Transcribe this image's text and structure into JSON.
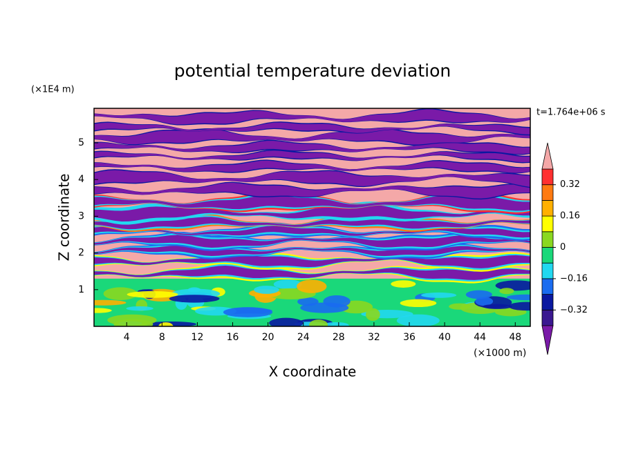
{
  "chart_data": {
    "type": "contour",
    "title": "potential temperature deviation",
    "x_label": "X coordinate",
    "y_label": "Z coordinate",
    "x_unit": "(×1000 m)",
    "y_unit": "(×1E4 m)",
    "time_label": "t=1.764e+06 s",
    "xlim": [
      0.3,
      49.7
    ],
    "xticks": [
      4,
      8,
      12,
      16,
      20,
      24,
      28,
      32,
      36,
      40,
      44,
      48
    ],
    "ylim": [
      0,
      5.94
    ],
    "yticks": [
      1,
      2,
      3,
      4,
      5
    ],
    "colorbar": {
      "levels": [
        -0.4,
        -0.32,
        -0.24,
        -0.16,
        -0.08,
        0,
        0.08,
        0.16,
        0.24,
        0.32,
        0.4
      ],
      "colors": [
        "#7a1aa8",
        "#3a1890",
        "#0a18a0",
        "#1a6cf0",
        "#22d8f0",
        "#1ad87a",
        "#8ad820",
        "#ffff00",
        "#ffb000",
        "#ff7a10",
        "#ff3030",
        "#f4a8a8"
      ],
      "ticks": [
        {
          "value": -0.32,
          "label": "−0.32"
        },
        {
          "value": -0.16,
          "label": "−0.16"
        },
        0,
        0.16,
        0.32
      ]
    }
  }
}
